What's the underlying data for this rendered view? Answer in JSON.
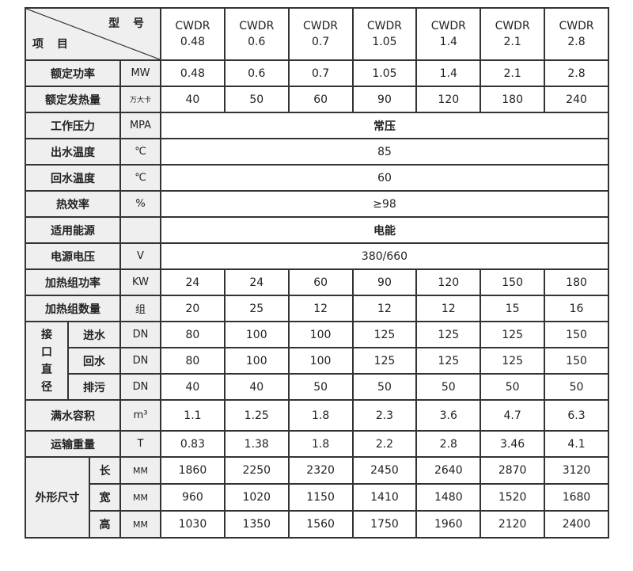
{
  "header": {
    "corner_top": "型 号",
    "corner_bottom": "项 目",
    "models": [
      {
        "name": "CWDR",
        "size": "0.48"
      },
      {
        "name": "CWDR",
        "size": "0.6"
      },
      {
        "name": "CWDR",
        "size": "0.7"
      },
      {
        "name": "CWDR",
        "size": "1.05"
      },
      {
        "name": "CWDR",
        "size": "1.4"
      },
      {
        "name": "CWDR",
        "size": "2.1"
      },
      {
        "name": "CWDR",
        "size": "2.8"
      }
    ]
  },
  "rows": [
    {
      "label": "额定功率",
      "unit": "MW",
      "values": [
        "0.48",
        "0.6",
        "0.7",
        "1.05",
        "1.4",
        "2.1",
        "2.8"
      ]
    },
    {
      "label": "额定发热量",
      "unit": "万大卡",
      "small_unit": true,
      "values": [
        "40",
        "50",
        "60",
        "90",
        "120",
        "180",
        "240"
      ]
    },
    {
      "label": "工作压力",
      "unit": "MPA",
      "span": "常压",
      "bold": true
    },
    {
      "label": "出水温度",
      "unit": "℃",
      "span": "85"
    },
    {
      "label": "回水温度",
      "unit": "℃",
      "span": "60"
    },
    {
      "label": "热效率",
      "unit": "%",
      "span": "≥98"
    },
    {
      "label": "适用能源",
      "unit": "",
      "span": "电能",
      "bold": true
    },
    {
      "label": "电源电压",
      "unit": "V",
      "span": "380/660"
    },
    {
      "label": "加热组功率",
      "unit": "KW",
      "values": [
        "24",
        "24",
        "60",
        "90",
        "120",
        "150",
        "180"
      ]
    },
    {
      "label": "加热组数量",
      "unit": "组",
      "values": [
        "20",
        "25",
        "12",
        "12",
        "12",
        "15",
        "16"
      ]
    }
  ],
  "connection": {
    "group": "接口直径",
    "rows": [
      {
        "label": "进水",
        "unit": "DN",
        "values": [
          "80",
          "100",
          "100",
          "125",
          "125",
          "125",
          "150"
        ]
      },
      {
        "label": "回水",
        "unit": "DN",
        "values": [
          "80",
          "100",
          "100",
          "125",
          "125",
          "125",
          "150"
        ]
      },
      {
        "label": "排污",
        "unit": "DN",
        "values": [
          "40",
          "40",
          "50",
          "50",
          "50",
          "50",
          "50"
        ]
      }
    ]
  },
  "rows2": [
    {
      "label": "满水容积",
      "unit": "m³",
      "values": [
        "1.1",
        "1.25",
        "1.8",
        "2.3",
        "3.6",
        "4.7",
        "6.3"
      ]
    },
    {
      "label": "运输重量",
      "unit": "T",
      "values": [
        "0.83",
        "1.38",
        "1.8",
        "2.2",
        "2.8",
        "3.46",
        "4.1"
      ]
    }
  ],
  "dimensions": {
    "group": "外形尺寸",
    "rows": [
      {
        "label": "长",
        "unit": "MM",
        "values": [
          "1860",
          "2250",
          "2320",
          "2450",
          "2640",
          "2870",
          "3120"
        ]
      },
      {
        "label": "宽",
        "unit": "MM",
        "values": [
          "960",
          "1020",
          "1150",
          "1410",
          "1480",
          "1520",
          "1680"
        ]
      },
      {
        "label": "高",
        "unit": "MM",
        "values": [
          "1030",
          "1350",
          "1560",
          "1750",
          "1960",
          "2120",
          "2400"
        ]
      }
    ]
  }
}
